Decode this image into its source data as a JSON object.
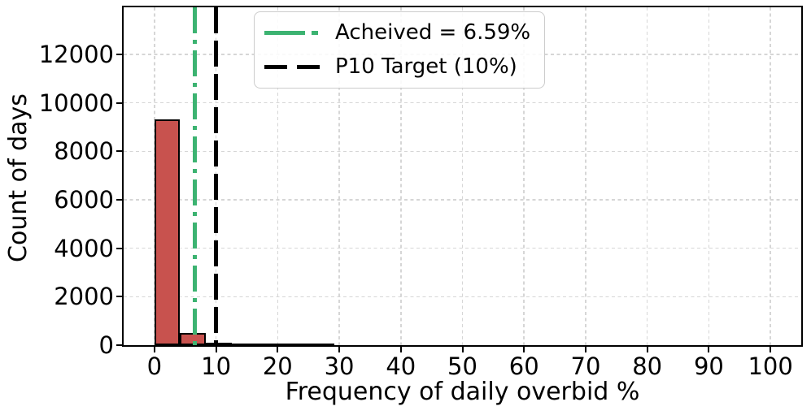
{
  "chart_data": {
    "type": "bar",
    "subtype": "histogram",
    "title": "",
    "xlabel": "Frequency of daily overbid %",
    "ylabel": "Count of days",
    "xlim": [
      -5,
      105
    ],
    "ylim": [
      0,
      13940
    ],
    "xticks": [
      0,
      10,
      20,
      30,
      40,
      50,
      60,
      70,
      80,
      90,
      100
    ],
    "yticks": [
      0,
      2000,
      4000,
      6000,
      8000,
      10000,
      12000
    ],
    "grid": true,
    "grid_style": "dashed",
    "bar_color": "#C8524E",
    "bar_edge_color": "#000000",
    "bins": [
      {
        "x0": 0.0,
        "x1": 4.17,
        "count": 9320
      },
      {
        "x0": 4.17,
        "x1": 8.33,
        "count": 490
      },
      {
        "x0": 8.33,
        "x1": 12.5,
        "count": 110
      },
      {
        "x0": 12.5,
        "x1": 16.67,
        "count": 45
      },
      {
        "x0": 16.67,
        "x1": 20.83,
        "count": 30
      },
      {
        "x0": 20.83,
        "x1": 25.0,
        "count": 20
      },
      {
        "x0": 25.0,
        "x1": 29.17,
        "count": 12
      }
    ],
    "vlines": [
      {
        "name": "achieved-line",
        "x": 6.59,
        "color": "#3CB371",
        "style": "dashdot",
        "linewidth": 5
      },
      {
        "name": "p10-target-line",
        "x": 10,
        "color": "#000000",
        "style": "dashed",
        "linewidth": 5
      }
    ],
    "legend": {
      "position": "upper-left",
      "items": [
        {
          "label": "Acheived = 6.59%",
          "color": "#3CB371",
          "style": "dashdot"
        },
        {
          "label": "P10 Target (10%)",
          "color": "#000000",
          "style": "dashed"
        }
      ]
    }
  }
}
